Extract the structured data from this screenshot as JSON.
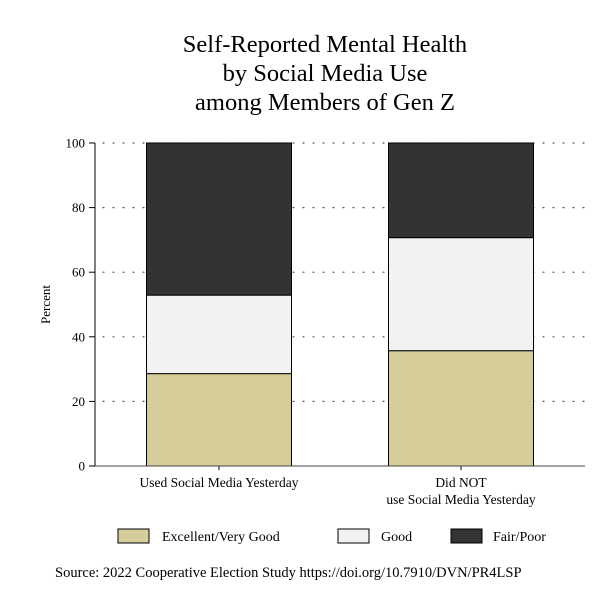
{
  "title_lines": [
    "Self-Reported Mental Health",
    "by Social Media Use",
    "among Members of Gen Z"
  ],
  "source": "Source: 2022 Cooperative Election Study https://doi.org/10.7910/DVN/PR4LSP",
  "chart_data": {
    "type": "bar",
    "stacked": true,
    "title": "Self-Reported Mental Health by Social Media Use among Members of Gen Z",
    "ylabel": "Percent",
    "xlabel": "",
    "ylim": [
      0,
      100
    ],
    "yticks": [
      0,
      20,
      40,
      60,
      80,
      100
    ],
    "grid": true,
    "legend_position": "bottom",
    "categories": [
      [
        "Used Social Media Yesterday"
      ],
      [
        "Did NOT",
        "use Social Media Yesterday"
      ]
    ],
    "series": [
      {
        "name": "Excellent/Very Good",
        "color": "#d6ce9a",
        "values": [
          28.6,
          35.7
        ]
      },
      {
        "name": "Good",
        "color": "#f2f2f2",
        "values": [
          24.3,
          35.0
        ]
      },
      {
        "name": "Fair/Poor",
        "color": "#333333",
        "values": [
          47.1,
          29.3
        ]
      }
    ]
  }
}
